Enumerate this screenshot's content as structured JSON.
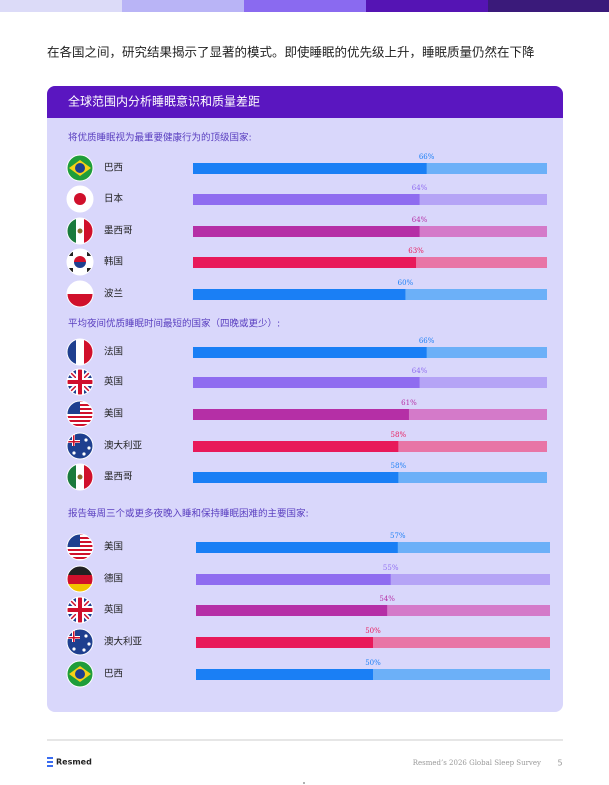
{
  "intro": "在各国之间，研究结果揭示了显著的模式。即使睡眠的优先级上升，睡眠质量仍然在下降",
  "card": {
    "title": "全球范围内分析睡眠意识和质量差距",
    "sections": [
      {
        "heading": "将优质睡眠视为最重要健康行为的顶级国家:",
        "countries": [
          "巴西",
          "日本",
          "墨西哥",
          "韩国",
          "波兰"
        ],
        "values": [
          66,
          64,
          64,
          63,
          60
        ],
        "value_labels": [
          "66%",
          "64%",
          "64%",
          "63%",
          "60%"
        ]
      },
      {
        "heading": "平均夜间优质睡眠时间最短的国家（四晚或更少）:",
        "countries": [
          "法国",
          "英国",
          "美国",
          "澳大利亚",
          "墨西哥"
        ],
        "values": [
          66,
          64,
          61,
          58,
          58
        ],
        "value_labels": [
          "66%",
          "64%",
          "61%",
          "58%",
          "58%"
        ]
      },
      {
        "heading": "报告每周三个或更多夜晚入睡和保持睡眠困难的主要国家:",
        "countries": [
          "美国",
          "德国",
          "英国",
          "澳大利亚",
          "巴西"
        ],
        "values": [
          57,
          55,
          54,
          50,
          50
        ],
        "value_labels": [
          "57%",
          "55%",
          "54%",
          "50%",
          "50%"
        ]
      }
    ],
    "colors": [
      {
        "bar": "#1a7ff5",
        "track": "#6cb0f8"
      },
      {
        "bar": "#8f6cf0",
        "track": "#b5a4f6"
      },
      {
        "bar": "#b52fa6",
        "track": "#d47ac9"
      },
      {
        "bar": "#e8195a",
        "track": "#e875a6"
      },
      {
        "bar": "#1a7ff5",
        "track": "#6cb0f8"
      }
    ]
  },
  "footer": {
    "logo": "Resmed",
    "source": "Resmed’s 2026 Global Sleep Survey",
    "page": 5
  }
}
